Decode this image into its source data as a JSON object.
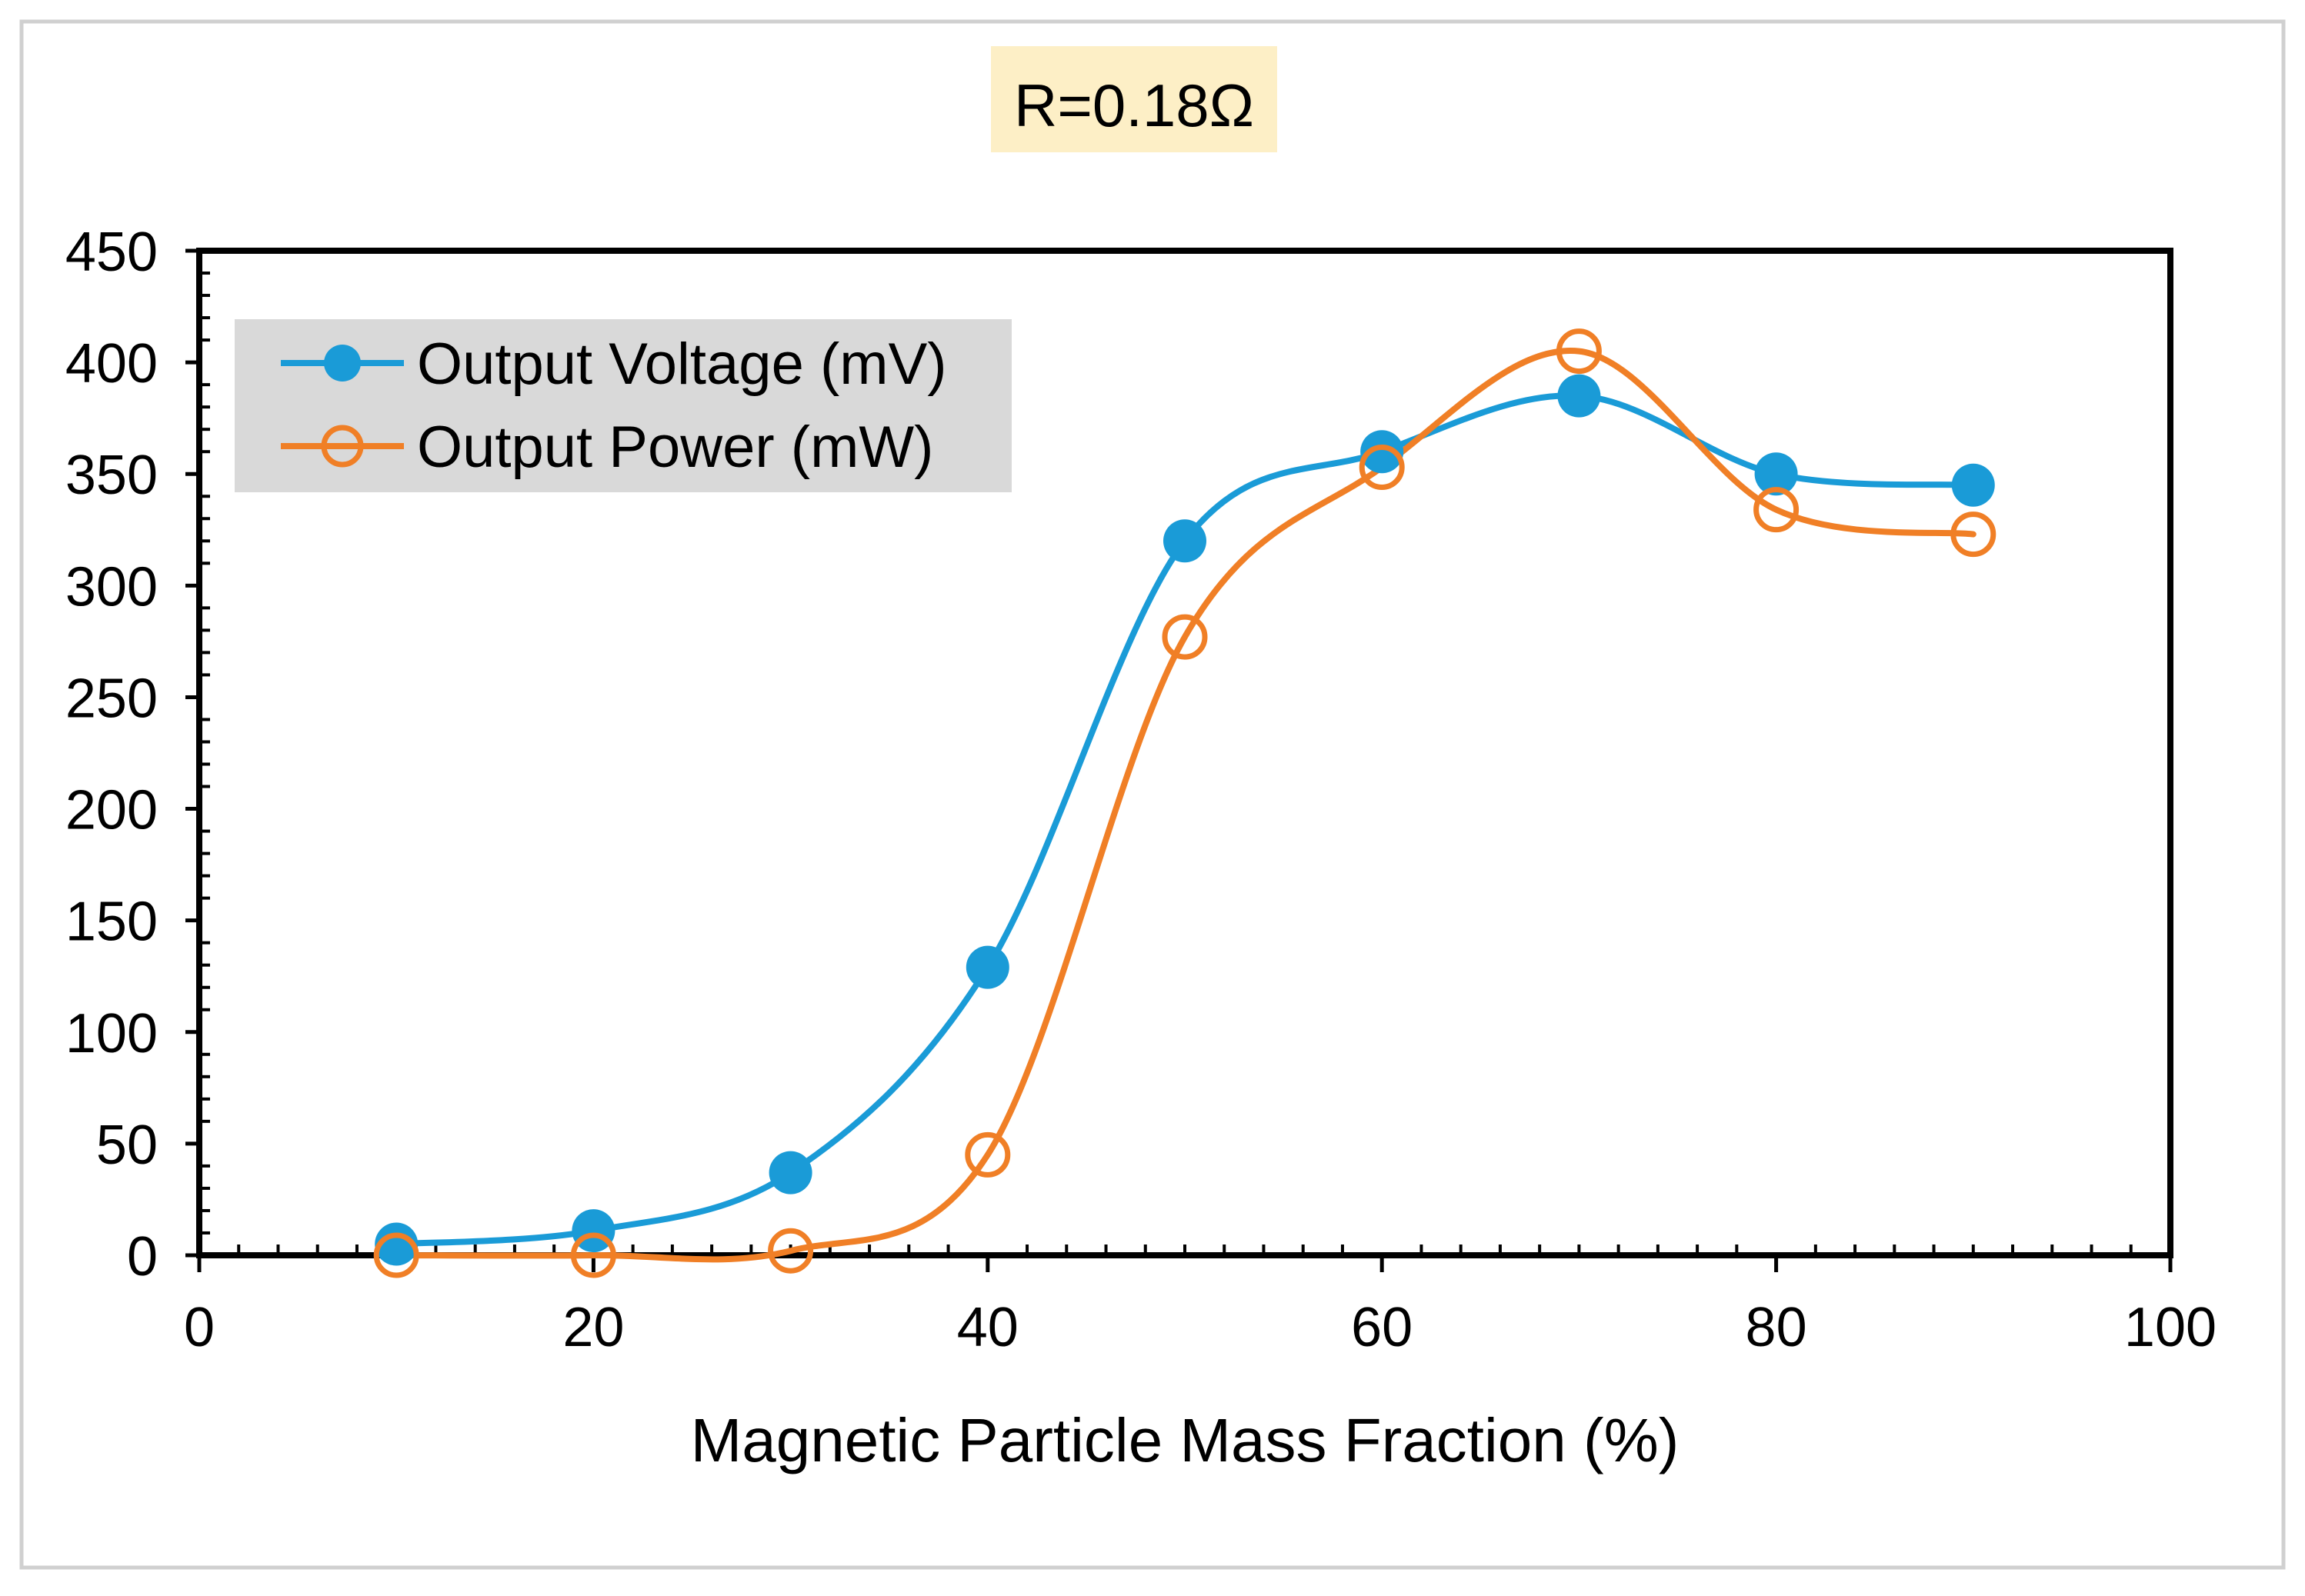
{
  "annotation": "R=0.18Ω",
  "colors": {
    "voltage": "#1a9bd7",
    "power": "#f07f26",
    "annotation_bg": "#fdefc6",
    "legend_bg": "#d9d9d9",
    "axis": "#000000",
    "frame": "#d0d0d0"
  },
  "chart_data": {
    "type": "line",
    "title": "",
    "xlabel": "Magnetic Particle Mass Fraction (%)",
    "ylabel": "",
    "xlim": [
      0,
      100
    ],
    "ylim": [
      0,
      450
    ],
    "x_ticks": [
      0,
      20,
      40,
      60,
      80,
      100
    ],
    "x_tick_labels": [
      "0",
      "20",
      "40",
      "60",
      "80",
      "100"
    ],
    "y_ticks": [
      0,
      50,
      100,
      150,
      200,
      250,
      300,
      350,
      400,
      450
    ],
    "y_tick_labels": [
      "0",
      "50",
      "100",
      "150",
      "200",
      "250",
      "300",
      "350",
      "400",
      "450"
    ],
    "grid": false,
    "legend_position": "top-left",
    "x": [
      10,
      20,
      30,
      40,
      50,
      60,
      70,
      80,
      90
    ],
    "series": [
      {
        "name": "Output Voltage (mV)",
        "marker": "filled-circle",
        "values": [
          5,
          11,
          37,
          129,
          320,
          360,
          385,
          350,
          345
        ]
      },
      {
        "name": "Output Power (mW)",
        "marker": "open-circle",
        "values": [
          0,
          0,
          2,
          45,
          277,
          353,
          405,
          334,
          323
        ]
      }
    ]
  }
}
